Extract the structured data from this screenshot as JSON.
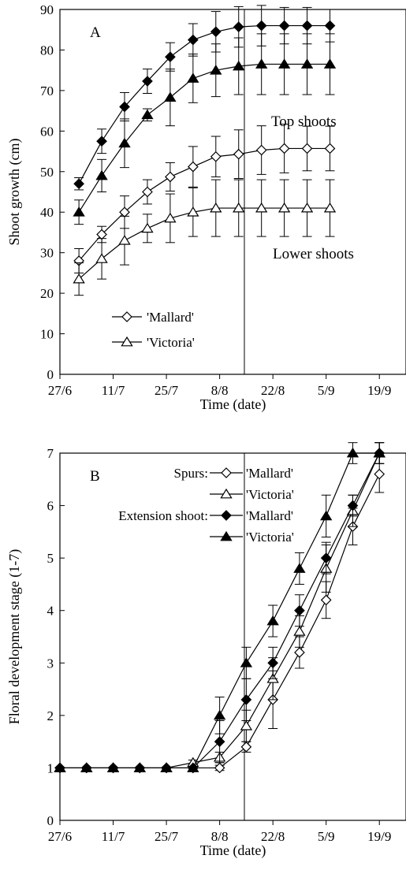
{
  "chart_data": [
    {
      "type": "line",
      "panel_label": "A",
      "xlabel": "Time (date)",
      "ylabel": "Shoot growth (cm)",
      "x_ticks": [
        {
          "label": "27/6",
          "day": 0
        },
        {
          "label": "11/7",
          "day": 14
        },
        {
          "label": "25/7",
          "day": 28
        },
        {
          "label": "8/8",
          "day": 42
        },
        {
          "label": "22/8",
          "day": 56
        },
        {
          "label": "5/9",
          "day": 70
        },
        {
          "label": "19/9",
          "day": 84
        }
      ],
      "xlim": [
        0,
        91
      ],
      "ylim": [
        0,
        90
      ],
      "y_ticks": [
        "0",
        "10",
        "20",
        "30",
        "40",
        "50",
        "60",
        "70",
        "80",
        "90"
      ],
      "vline_x": 48.5,
      "annotations": [
        "Top shoots",
        "Lower shoots"
      ],
      "legend": [
        {
          "label": "'Mallard'",
          "marker": "diamond",
          "fill": "open"
        },
        {
          "label": "'Victoria'",
          "marker": "triangle",
          "fill": "open"
        }
      ],
      "x": [
        5,
        11,
        17,
        23,
        29,
        35,
        41,
        47,
        53,
        59,
        65,
        71
      ],
      "series": [
        {
          "cultivar": "'Mallard'",
          "position": "Top shoots",
          "marker": "diamond",
          "fill": "filled",
          "values": [
            47,
            57.5,
            66,
            72.3,
            78.3,
            82.5,
            84.5,
            85.7,
            86,
            86,
            86,
            86
          ],
          "err": [
            1.5,
            3,
            3.5,
            3,
            3.5,
            4,
            5,
            5,
            5,
            4.5,
            4.5,
            4
          ]
        },
        {
          "cultivar": "'Victoria'",
          "position": "Top shoots",
          "marker": "triangle",
          "fill": "filled",
          "values": [
            40,
            49,
            57,
            64,
            68.3,
            73,
            75,
            76,
            76.5,
            76.5,
            76.5,
            76.5
          ],
          "err": [
            3,
            4,
            6,
            1.5,
            7,
            6,
            6.5,
            7,
            7.5,
            7.5,
            7.5,
            7.5
          ]
        },
        {
          "cultivar": "'Mallard'",
          "position": "Lower shoots",
          "marker": "diamond",
          "fill": "open",
          "values": [
            28,
            34.5,
            40,
            45,
            48.7,
            51.2,
            53.7,
            54.3,
            55.3,
            55.7,
            55.7,
            55.7
          ],
          "err": [
            3,
            2,
            4,
            3,
            3.5,
            5,
            5,
            6,
            6,
            6,
            5.5,
            5.5
          ]
        },
        {
          "cultivar": "'Victoria'",
          "position": "Lower shoots",
          "marker": "triangle",
          "fill": "open",
          "values": [
            23.5,
            28.5,
            33,
            36,
            38.5,
            40,
            41,
            41,
            41,
            41,
            41,
            41
          ],
          "err": [
            4,
            5,
            6,
            3.5,
            6,
            6,
            7,
            7,
            7,
            7,
            7,
            7
          ]
        }
      ]
    },
    {
      "type": "line",
      "panel_label": "B",
      "xlabel": "Time (date)",
      "ylabel": "Floral development stage (1-7)",
      "x_ticks": [
        {
          "label": "27/6",
          "day": 0
        },
        {
          "label": "11/7",
          "day": 14
        },
        {
          "label": "25/7",
          "day": 28
        },
        {
          "label": "8/8",
          "day": 42
        },
        {
          "label": "22/8",
          "day": 56
        },
        {
          "label": "5/9",
          "day": 70
        },
        {
          "label": "19/9",
          "day": 84
        }
      ],
      "xlim": [
        0,
        91
      ],
      "ylim": [
        0,
        7
      ],
      "y_ticks": [
        "0",
        "1",
        "2",
        "3",
        "4",
        "5",
        "6",
        "7"
      ],
      "vline_x": 48.5,
      "legend_groups": [
        {
          "label": "Spurs:",
          "items": [
            "'Mallard'",
            "'Victoria'"
          ]
        },
        {
          "label": "Extension shoot:",
          "items": [
            "'Mallard'",
            "'Victoria'"
          ]
        }
      ],
      "x": [
        0,
        7,
        14,
        21,
        28,
        35,
        42,
        49,
        56,
        63,
        70,
        77,
        84
      ],
      "series": [
        {
          "name": "'Mallard'",
          "group": "Spurs:",
          "marker": "diamond",
          "fill": "open",
          "values": [
            1,
            1,
            1,
            1,
            1,
            1,
            1,
            1.4,
            2.3,
            3.2,
            4.2,
            5.6,
            6.6
          ],
          "err": [
            0,
            0,
            0,
            0,
            0,
            0,
            0.05,
            0.1,
            0.55,
            0.3,
            0.35,
            0.35,
            0.35
          ]
        },
        {
          "name": "'Victoria'",
          "group": "Spurs:",
          "marker": "triangle",
          "fill": "open",
          "values": [
            1,
            1,
            1,
            1,
            1,
            1.1,
            1.2,
            1.8,
            2.7,
            3.6,
            4.8,
            5.9,
            7
          ],
          "err": [
            0,
            0,
            0,
            0,
            0,
            0.05,
            0.1,
            0.3,
            0.4,
            0.3,
            0.45,
            0.3,
            0.2
          ]
        },
        {
          "name": "'Mallard'",
          "group": "Extension shoot:",
          "marker": "diamond",
          "fill": "filled",
          "values": [
            1,
            1,
            1,
            1,
            1,
            1,
            1.5,
            2.3,
            3,
            4,
            5,
            6,
            7
          ],
          "err": [
            0,
            0,
            0,
            0,
            0,
            0,
            0.4,
            0.4,
            0.3,
            0.3,
            0.3,
            0.2,
            0.2
          ]
        },
        {
          "name": "'Victoria'",
          "group": "Extension shoot:",
          "marker": "triangle",
          "fill": "filled",
          "values": [
            1,
            1,
            1,
            1,
            1,
            1,
            2,
            3,
            3.8,
            4.8,
            5.8,
            7,
            7
          ],
          "err": [
            0,
            0,
            0,
            0,
            0,
            0,
            0.35,
            0.3,
            0.3,
            0.3,
            0.4,
            0.2,
            0.2
          ]
        }
      ]
    }
  ]
}
